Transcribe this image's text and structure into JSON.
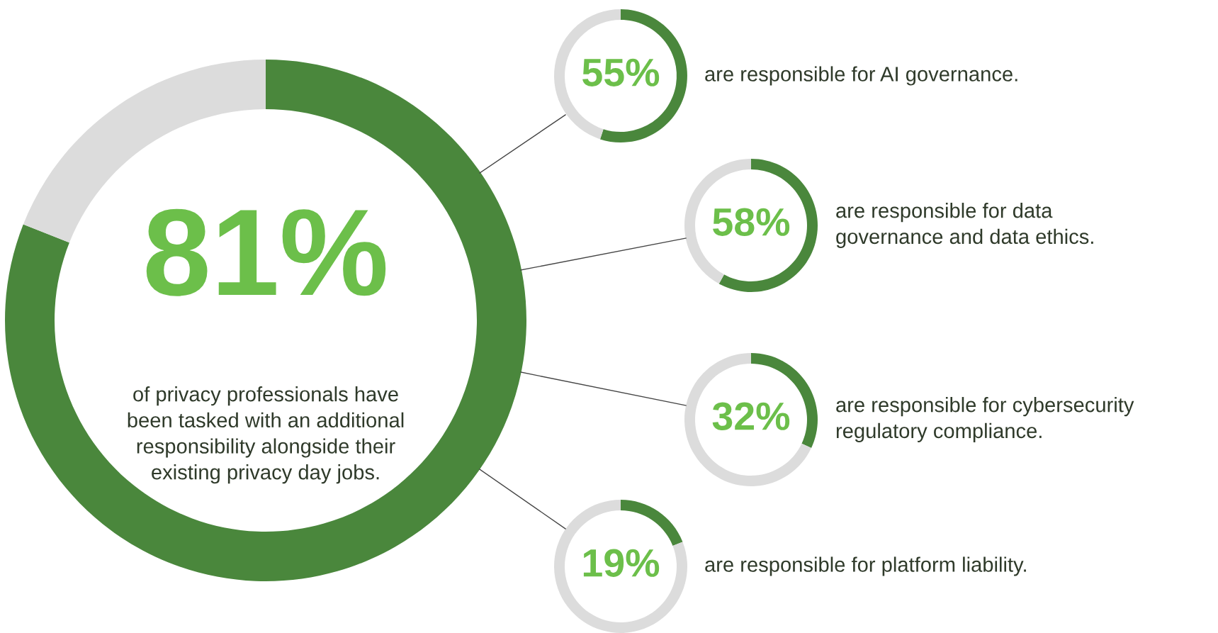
{
  "chart_data": [
    {
      "type": "donut",
      "categories": [
        null,
        null
      ],
      "values": [
        81,
        19
      ],
      "colors": [
        "#4a873c",
        "#dcdcdc"
      ],
      "value_labels": [
        "81%",
        null
      ],
      "annotations": [
        "of privacy professionals have\nbeen tasked with an additional\nresponsibility alongside their\nexisting privacy day jobs."
      ]
    },
    {
      "type": "donut",
      "categories": [
        null,
        null
      ],
      "values": [
        55,
        45
      ],
      "colors": [
        "#4a873c",
        "#dcdcdc"
      ],
      "value_labels": [
        "55%",
        null
      ],
      "annotations": [
        "are responsible for AI governance."
      ]
    },
    {
      "type": "donut",
      "categories": [
        null,
        null
      ],
      "values": [
        58,
        42
      ],
      "colors": [
        "#4a873c",
        "#dcdcdc"
      ],
      "value_labels": [
        "58%",
        null
      ],
      "annotations": [
        "are responsible for data\ngovernance and data ethics."
      ]
    },
    {
      "type": "donut",
      "categories": [
        null,
        null
      ],
      "values": [
        32,
        68
      ],
      "colors": [
        "#4a873c",
        "#dcdcdc"
      ],
      "value_labels": [
        "32%",
        null
      ],
      "annotations": [
        "are responsible for cybersecurity\nregulatory compliance."
      ]
    },
    {
      "type": "donut",
      "categories": [
        null,
        null
      ],
      "values": [
        19,
        81
      ],
      "colors": [
        "#4a873c",
        "#dcdcdc"
      ],
      "value_labels": [
        "19%",
        null
      ],
      "annotations": [
        "are responsible for platform liability."
      ]
    }
  ]
}
